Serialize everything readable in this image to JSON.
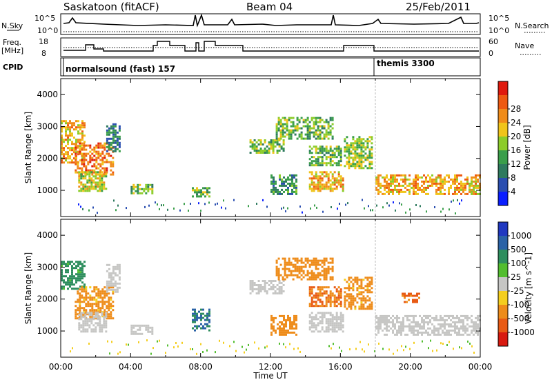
{
  "header": {
    "title": "Saskatoon (fitACF)",
    "beam": "Beam 04",
    "date": "25/Feb/2011"
  },
  "noise_panel": {
    "label_left": "N.Sky",
    "label_right": "N.Search",
    "tick_top_left": "10^5",
    "tick_bottom_left": "10^0",
    "tick_top_right": "10^5",
    "tick_bottom_right": "10^0"
  },
  "freq_panel": {
    "label_left_1": "Freq.",
    "label_left_2": "[MHz]",
    "label_right": "Nave",
    "tick_top_left": "18",
    "tick_bottom_left": "8",
    "tick_top_right": "60",
    "tick_bottom_right": "0"
  },
  "cpid_panel": {
    "label": "CPID",
    "mode1": "normalsound (fast) 157",
    "mode2": "themis 3300"
  },
  "colors": {
    "power": [
      "#0a1eff",
      "#2a4eb0",
      "#2e7a5e",
      "#3a9e4a",
      "#8ccc2a",
      "#f0c41a",
      "#f08c1a",
      "#ee5a12",
      "#e01a0e"
    ],
    "velocity": [
      "#2038c0",
      "#2a62a6",
      "#2e8e5e",
      "#52bd2e",
      "#c6c6c4",
      "#f4ce1e",
      "#ee8c1a",
      "#e85a14",
      "#d81a10"
    ],
    "ground": "#c6c6c4"
  },
  "chart_data": [
    {
      "type": "heatmap",
      "name_key": "power",
      "title": "",
      "xlabel": "Time UT",
      "ylabel": "Slant Range [km]",
      "colorbar_label": "Power [dB]",
      "colorbar_ticks": [
        "4",
        "8",
        "12",
        "16",
        "20",
        "24",
        "28"
      ],
      "xlim": [
        0,
        24
      ],
      "ylim": [
        180,
        4500
      ],
      "x_ticks": [
        "00:00",
        "04:00",
        "08:00",
        "12:00",
        "16:00",
        "20:00",
        "00:00"
      ],
      "y_ticks": [
        "1000",
        "2000",
        "3000",
        "4000"
      ],
      "echo_regions": [
        {
          "t": [
            0.0,
            1.4
          ],
          "r": [
            1900,
            3200
          ],
          "value": 24
        },
        {
          "t": [
            0.8,
            3.0
          ],
          "r": [
            1500,
            2500
          ],
          "value": 28
        },
        {
          "t": [
            1.0,
            2.6
          ],
          "r": [
            1000,
            1600
          ],
          "value": 20
        },
        {
          "t": [
            2.6,
            3.4
          ],
          "r": [
            2200,
            3100
          ],
          "value": 10
        },
        {
          "t": [
            4.0,
            5.2
          ],
          "r": [
            900,
            1200
          ],
          "value": 16
        },
        {
          "t": [
            7.5,
            8.5
          ],
          "r": [
            800,
            1100
          ],
          "value": 16
        },
        {
          "t": [
            10.8,
            12.8
          ],
          "r": [
            2200,
            2600
          ],
          "value": 16
        },
        {
          "t": [
            12.0,
            13.5
          ],
          "r": [
            900,
            1500
          ],
          "value": 12
        },
        {
          "t": [
            12.3,
            15.5
          ],
          "r": [
            2600,
            3300
          ],
          "value": 16
        },
        {
          "t": [
            14.2,
            16.2
          ],
          "r": [
            1000,
            1600
          ],
          "value": 24
        },
        {
          "t": [
            14.2,
            16.0
          ],
          "r": [
            1800,
            2400
          ],
          "value": 16
        },
        {
          "t": [
            16.2,
            17.8
          ],
          "r": [
            1700,
            2700
          ],
          "value": 18
        },
        {
          "t": [
            18.0,
            24.0
          ],
          "r": [
            900,
            1500
          ],
          "value": 24
        }
      ]
    },
    {
      "type": "heatmap",
      "name_key": "velocity",
      "title": "",
      "xlabel": "Time UT",
      "ylabel": "Slant Range [km]",
      "colorbar_label": "Velocity [m s^-1]",
      "colorbar_ticks": [
        "1000",
        "500",
        "100",
        "25",
        "-25",
        "-100",
        "-500",
        "-1000"
      ],
      "xlim": [
        0,
        24
      ],
      "ylim": [
        180,
        4500
      ],
      "x_ticks": [
        "00:00",
        "04:00",
        "08:00",
        "12:00",
        "16:00",
        "20:00",
        "00:00"
      ],
      "y_ticks": [
        "1000",
        "2000",
        "3000",
        "4000"
      ],
      "echo_regions": [
        {
          "t": [
            0.0,
            1.4
          ],
          "r": [
            2300,
            3200
          ],
          "value": 100
        },
        {
          "t": [
            0.8,
            3.0
          ],
          "r": [
            1400,
            2400
          ],
          "value": -100
        },
        {
          "t": [
            1.0,
            2.6
          ],
          "r": [
            1000,
            1600
          ],
          "value": 0
        },
        {
          "t": [
            2.6,
            3.4
          ],
          "r": [
            2200,
            3100
          ],
          "value": 0
        },
        {
          "t": [
            4.0,
            5.2
          ],
          "r": [
            900,
            1200
          ],
          "value": 0
        },
        {
          "t": [
            7.5,
            8.5
          ],
          "r": [
            1000,
            1700
          ],
          "value": 300
        },
        {
          "t": [
            10.8,
            12.8
          ],
          "r": [
            2200,
            2600
          ],
          "value": 0
        },
        {
          "t": [
            12.0,
            13.5
          ],
          "r": [
            900,
            1500
          ],
          "value": -200
        },
        {
          "t": [
            12.3,
            15.5
          ],
          "r": [
            2600,
            3300
          ],
          "value": -150
        },
        {
          "t": [
            14.2,
            16.2
          ],
          "r": [
            1000,
            1600
          ],
          "value": 0
        },
        {
          "t": [
            14.2,
            16.0
          ],
          "r": [
            1800,
            2400
          ],
          "value": -300
        },
        {
          "t": [
            16.2,
            17.8
          ],
          "r": [
            1700,
            2700
          ],
          "value": -100
        },
        {
          "t": [
            18.0,
            24.0
          ],
          "r": [
            900,
            1500
          ],
          "value": 0
        },
        {
          "t": [
            19.5,
            20.5
          ],
          "r": [
            1900,
            2200
          ],
          "value": -400
        }
      ]
    }
  ]
}
